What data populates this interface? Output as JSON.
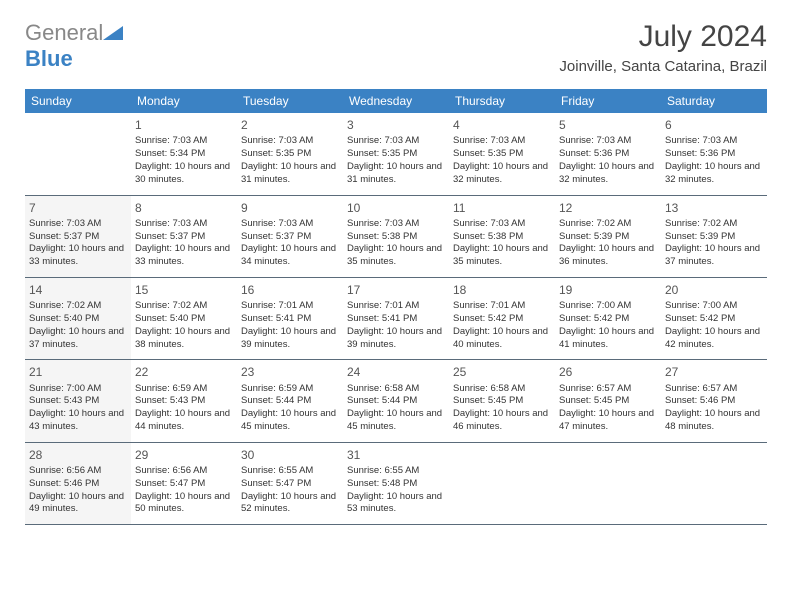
{
  "brand": {
    "part1": "General",
    "part2": "Blue"
  },
  "title": {
    "month": "July 2024",
    "location": "Joinville, Santa Catarina, Brazil"
  },
  "colors": {
    "header_bg": "#3b82c4",
    "header_text": "#ffffff",
    "border": "#5a6b7a",
    "shade": "#f5f5f5",
    "logo_blue": "#3b82c4",
    "logo_gray": "#888888"
  },
  "daynames": [
    "Sunday",
    "Monday",
    "Tuesday",
    "Wednesday",
    "Thursday",
    "Friday",
    "Saturday"
  ],
  "weeks": [
    [
      null,
      {
        "n": "1",
        "sr": "Sunrise: 7:03 AM",
        "ss": "Sunset: 5:34 PM",
        "dl": "Daylight: 10 hours and 30 minutes."
      },
      {
        "n": "2",
        "sr": "Sunrise: 7:03 AM",
        "ss": "Sunset: 5:35 PM",
        "dl": "Daylight: 10 hours and 31 minutes."
      },
      {
        "n": "3",
        "sr": "Sunrise: 7:03 AM",
        "ss": "Sunset: 5:35 PM",
        "dl": "Daylight: 10 hours and 31 minutes."
      },
      {
        "n": "4",
        "sr": "Sunrise: 7:03 AM",
        "ss": "Sunset: 5:35 PM",
        "dl": "Daylight: 10 hours and 32 minutes."
      },
      {
        "n": "5",
        "sr": "Sunrise: 7:03 AM",
        "ss": "Sunset: 5:36 PM",
        "dl": "Daylight: 10 hours and 32 minutes."
      },
      {
        "n": "6",
        "sr": "Sunrise: 7:03 AM",
        "ss": "Sunset: 5:36 PM",
        "dl": "Daylight: 10 hours and 32 minutes."
      }
    ],
    [
      {
        "n": "7",
        "sr": "Sunrise: 7:03 AM",
        "ss": "Sunset: 5:37 PM",
        "dl": "Daylight: 10 hours and 33 minutes."
      },
      {
        "n": "8",
        "sr": "Sunrise: 7:03 AM",
        "ss": "Sunset: 5:37 PM",
        "dl": "Daylight: 10 hours and 33 minutes."
      },
      {
        "n": "9",
        "sr": "Sunrise: 7:03 AM",
        "ss": "Sunset: 5:37 PM",
        "dl": "Daylight: 10 hours and 34 minutes."
      },
      {
        "n": "10",
        "sr": "Sunrise: 7:03 AM",
        "ss": "Sunset: 5:38 PM",
        "dl": "Daylight: 10 hours and 35 minutes."
      },
      {
        "n": "11",
        "sr": "Sunrise: 7:03 AM",
        "ss": "Sunset: 5:38 PM",
        "dl": "Daylight: 10 hours and 35 minutes."
      },
      {
        "n": "12",
        "sr": "Sunrise: 7:02 AM",
        "ss": "Sunset: 5:39 PM",
        "dl": "Daylight: 10 hours and 36 minutes."
      },
      {
        "n": "13",
        "sr": "Sunrise: 7:02 AM",
        "ss": "Sunset: 5:39 PM",
        "dl": "Daylight: 10 hours and 37 minutes."
      }
    ],
    [
      {
        "n": "14",
        "sr": "Sunrise: 7:02 AM",
        "ss": "Sunset: 5:40 PM",
        "dl": "Daylight: 10 hours and 37 minutes."
      },
      {
        "n": "15",
        "sr": "Sunrise: 7:02 AM",
        "ss": "Sunset: 5:40 PM",
        "dl": "Daylight: 10 hours and 38 minutes."
      },
      {
        "n": "16",
        "sr": "Sunrise: 7:01 AM",
        "ss": "Sunset: 5:41 PM",
        "dl": "Daylight: 10 hours and 39 minutes."
      },
      {
        "n": "17",
        "sr": "Sunrise: 7:01 AM",
        "ss": "Sunset: 5:41 PM",
        "dl": "Daylight: 10 hours and 39 minutes."
      },
      {
        "n": "18",
        "sr": "Sunrise: 7:01 AM",
        "ss": "Sunset: 5:42 PM",
        "dl": "Daylight: 10 hours and 40 minutes."
      },
      {
        "n": "19",
        "sr": "Sunrise: 7:00 AM",
        "ss": "Sunset: 5:42 PM",
        "dl": "Daylight: 10 hours and 41 minutes."
      },
      {
        "n": "20",
        "sr": "Sunrise: 7:00 AM",
        "ss": "Sunset: 5:42 PM",
        "dl": "Daylight: 10 hours and 42 minutes."
      }
    ],
    [
      {
        "n": "21",
        "sr": "Sunrise: 7:00 AM",
        "ss": "Sunset: 5:43 PM",
        "dl": "Daylight: 10 hours and 43 minutes."
      },
      {
        "n": "22",
        "sr": "Sunrise: 6:59 AM",
        "ss": "Sunset: 5:43 PM",
        "dl": "Daylight: 10 hours and 44 minutes."
      },
      {
        "n": "23",
        "sr": "Sunrise: 6:59 AM",
        "ss": "Sunset: 5:44 PM",
        "dl": "Daylight: 10 hours and 45 minutes."
      },
      {
        "n": "24",
        "sr": "Sunrise: 6:58 AM",
        "ss": "Sunset: 5:44 PM",
        "dl": "Daylight: 10 hours and 45 minutes."
      },
      {
        "n": "25",
        "sr": "Sunrise: 6:58 AM",
        "ss": "Sunset: 5:45 PM",
        "dl": "Daylight: 10 hours and 46 minutes."
      },
      {
        "n": "26",
        "sr": "Sunrise: 6:57 AM",
        "ss": "Sunset: 5:45 PM",
        "dl": "Daylight: 10 hours and 47 minutes."
      },
      {
        "n": "27",
        "sr": "Sunrise: 6:57 AM",
        "ss": "Sunset: 5:46 PM",
        "dl": "Daylight: 10 hours and 48 minutes."
      }
    ],
    [
      {
        "n": "28",
        "sr": "Sunrise: 6:56 AM",
        "ss": "Sunset: 5:46 PM",
        "dl": "Daylight: 10 hours and 49 minutes."
      },
      {
        "n": "29",
        "sr": "Sunrise: 6:56 AM",
        "ss": "Sunset: 5:47 PM",
        "dl": "Daylight: 10 hours and 50 minutes."
      },
      {
        "n": "30",
        "sr": "Sunrise: 6:55 AM",
        "ss": "Sunset: 5:47 PM",
        "dl": "Daylight: 10 hours and 52 minutes."
      },
      {
        "n": "31",
        "sr": "Sunrise: 6:55 AM",
        "ss": "Sunset: 5:48 PM",
        "dl": "Daylight: 10 hours and 53 minutes."
      },
      null,
      null,
      null
    ]
  ]
}
